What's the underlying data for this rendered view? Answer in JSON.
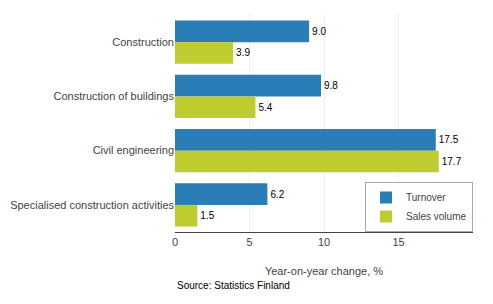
{
  "chart_data": {
    "type": "bar",
    "orientation": "horizontal",
    "categories": [
      "Construction",
      "Construction of buildings",
      "Civil engineering",
      "Specialised construction activities"
    ],
    "series": [
      {
        "name": "Turnover",
        "color": "#2a7db5",
        "values": [
          9.0,
          9.8,
          17.5,
          6.2
        ],
        "value_labels": [
          "9.0",
          "9.8",
          "17.5",
          "6.2"
        ]
      },
      {
        "name": "Sales volume",
        "color": "#bfcc30",
        "values": [
          3.9,
          5.4,
          17.7,
          1.5
        ],
        "value_labels": [
          "3.9",
          "5.4",
          "17.7",
          "1.5"
        ]
      }
    ],
    "xlabel": "Year-on-year change, %",
    "xlim": [
      0,
      20
    ],
    "xticks": [
      0,
      5,
      10,
      15
    ],
    "grid": true,
    "legend": "lower right",
    "data_labels": true,
    "annotations": [
      "Source: Statistics Finland"
    ]
  }
}
